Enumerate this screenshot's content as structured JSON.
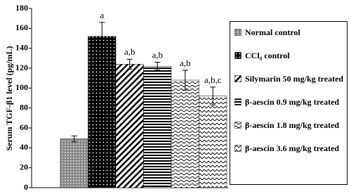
{
  "chart_data": {
    "type": "bar",
    "y_label": "Serum TGF-β1 level (pg/mL)",
    "categories": [
      "Normal control",
      "CCl₄ control",
      "Silymarin 50 mg/kg treated",
      "β-aescin 0.9 mg/kg treated",
      "β-aescin 1.8 mg/kg treated",
      "β-aescin 3.6 mg/kg treated"
    ],
    "values": [
      49,
      152,
      124,
      122,
      108,
      92
    ],
    "errors": [
      3,
      14,
      5,
      4,
      10,
      9
    ],
    "annotations": [
      null,
      "a",
      "a,b",
      "a,b",
      "a,b",
      "a,b,c"
    ],
    "ylim": [
      0,
      180
    ],
    "yticks": [
      0,
      20,
      40,
      60,
      80,
      100,
      120,
      140,
      160,
      180
    ]
  }
}
